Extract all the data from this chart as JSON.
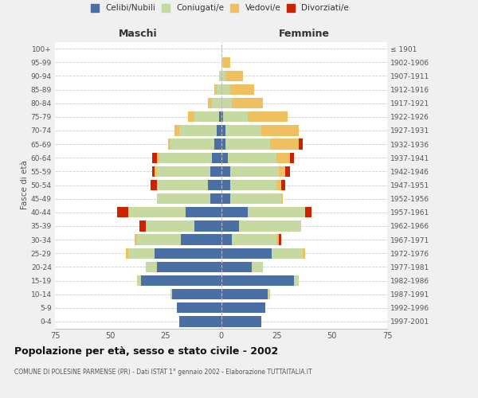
{
  "age_groups": [
    "0-4",
    "5-9",
    "10-14",
    "15-19",
    "20-24",
    "25-29",
    "30-34",
    "35-39",
    "40-44",
    "45-49",
    "50-54",
    "55-59",
    "60-64",
    "65-69",
    "70-74",
    "75-79",
    "80-84",
    "85-89",
    "90-94",
    "95-99",
    "100+"
  ],
  "birth_years": [
    "1997-2001",
    "1992-1996",
    "1987-1991",
    "1982-1986",
    "1977-1981",
    "1972-1976",
    "1967-1971",
    "1962-1966",
    "1957-1961",
    "1952-1956",
    "1947-1951",
    "1942-1946",
    "1937-1941",
    "1932-1936",
    "1927-1931",
    "1922-1926",
    "1917-1921",
    "1912-1916",
    "1907-1911",
    "1902-1906",
    "≤ 1901"
  ],
  "maschi": {
    "celibi": [
      19,
      20,
      22,
      36,
      29,
      30,
      18,
      12,
      16,
      5,
      6,
      5,
      4,
      3,
      2,
      1,
      0,
      0,
      0,
      0,
      0
    ],
    "coniugati": [
      0,
      0,
      1,
      2,
      5,
      12,
      20,
      22,
      26,
      24,
      23,
      24,
      24,
      20,
      17,
      11,
      4,
      2,
      1,
      0,
      0
    ],
    "vedovi": [
      0,
      0,
      0,
      0,
      0,
      1,
      1,
      0,
      0,
      0,
      0,
      1,
      1,
      1,
      2,
      3,
      2,
      1,
      0,
      0,
      0
    ],
    "divorziati": [
      0,
      0,
      0,
      0,
      0,
      0,
      0,
      3,
      5,
      0,
      3,
      1,
      2,
      0,
      0,
      0,
      0,
      0,
      0,
      0,
      0
    ]
  },
  "femmine": {
    "nubili": [
      18,
      20,
      21,
      33,
      14,
      23,
      5,
      8,
      12,
      4,
      4,
      4,
      3,
      2,
      2,
      1,
      0,
      0,
      0,
      0,
      0
    ],
    "coniugate": [
      0,
      0,
      1,
      2,
      5,
      14,
      20,
      28,
      26,
      23,
      21,
      22,
      22,
      20,
      16,
      11,
      5,
      4,
      2,
      1,
      0
    ],
    "vedove": [
      0,
      0,
      0,
      0,
      0,
      1,
      1,
      0,
      0,
      1,
      2,
      3,
      6,
      13,
      17,
      18,
      14,
      11,
      8,
      3,
      0
    ],
    "divorziate": [
      0,
      0,
      0,
      0,
      0,
      0,
      1,
      0,
      3,
      0,
      2,
      2,
      2,
      2,
      0,
      0,
      0,
      0,
      0,
      0,
      0
    ]
  },
  "colors": {
    "celibi": "#4A6FA5",
    "coniugati": "#C5D9A0",
    "vedovi": "#F0C060",
    "divorziati": "#CC2200"
  },
  "xlim": 75,
  "title": "Popolazione per età, sesso e stato civile - 2002",
  "subtitle": "COMUNE DI POLESINE PARMENSE (PR) - Dati ISTAT 1° gennaio 2002 - Elaborazione TUTTAITALIA.IT",
  "ylabel_left": "Fasce di età",
  "xlabel_left": "Maschi",
  "xlabel_right": "Femmine",
  "background_color": "#f0f0f0",
  "plot_bg": "#ffffff"
}
